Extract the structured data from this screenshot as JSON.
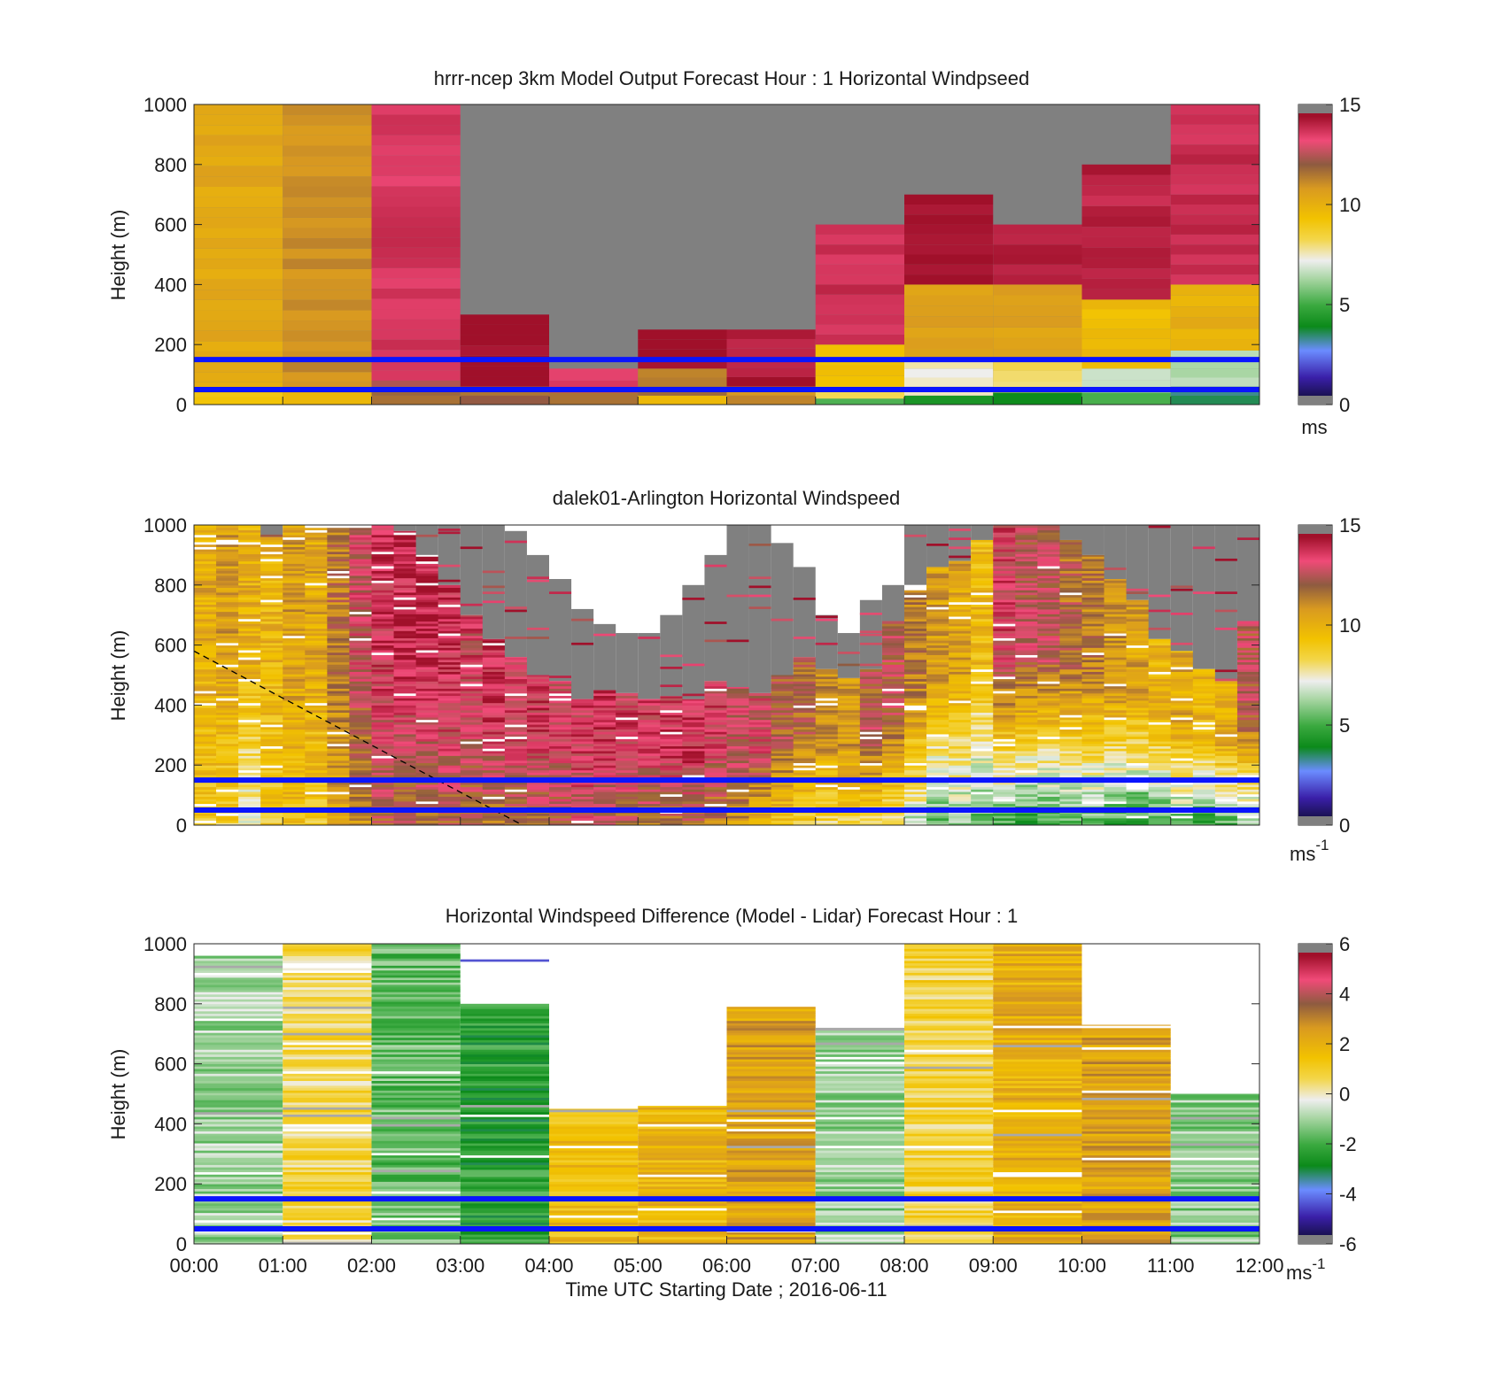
{
  "figure": {
    "xlabel": "Time UTC  Starting Date ; 2016-06-11",
    "x_ticks": [
      "00:00",
      "01:00",
      "02:00",
      "03:00",
      "04:00",
      "05:00",
      "06:00",
      "07:00",
      "08:00",
      "09:00",
      "10:00",
      "11:00",
      "12:00"
    ],
    "boundary_lines_m": [
      50,
      150
    ],
    "boundary_line_color": "#0a14ff"
  },
  "chart_data": [
    {
      "type": "heatmap",
      "title": "hrrr-ncep 3km Model Output   Forecast Hour : 1 Horizontal Windpseed",
      "xlabel": "",
      "ylabel": "Height (m)",
      "ylim": [
        0,
        1000
      ],
      "y_ticks": [
        "0",
        "200",
        "400",
        "600",
        "800",
        "1000"
      ],
      "colorbar": {
        "range": [
          0,
          15
        ],
        "ticks": [
          "0",
          "5",
          "10",
          "15"
        ],
        "unit": "ms"
      },
      "cells": [
        {
          "hour": 0,
          "z": [
            [
              0,
              25,
              9.2
            ],
            [
              25,
              40,
              9.0
            ],
            [
              40,
              1000,
              10.3
            ]
          ]
        },
        {
          "hour": 1,
          "z": [
            [
              0,
              40,
              9.6
            ],
            [
              40,
              1000,
              11.0
            ]
          ]
        },
        {
          "hour": 2,
          "z": [
            [
              0,
              60,
              11.5
            ],
            [
              60,
              80,
              12.5
            ],
            [
              80,
              1000,
              13.6
            ]
          ]
        },
        {
          "hour": 3,
          "z": [
            [
              0,
              60,
              11.8
            ],
            [
              60,
              300,
              14.5
            ]
          ]
        },
        {
          "hour": 4,
          "z": [
            [
              0,
              40,
              11.5
            ],
            [
              40,
              120,
              13.6
            ]
          ]
        },
        {
          "hour": 5,
          "z": [
            [
              0,
              30,
              9.5
            ],
            [
              30,
              120,
              11.5
            ],
            [
              120,
              250,
              14.5
            ]
          ]
        },
        {
          "hour": 6,
          "z": [
            [
              0,
              60,
              11.0
            ],
            [
              60,
              250,
              14.2
            ]
          ]
        },
        {
          "hour": 7,
          "z": [
            [
              0,
              20,
              5.0
            ],
            [
              20,
              60,
              8.0
            ],
            [
              60,
              200,
              9.5
            ],
            [
              200,
              600,
              13.8
            ]
          ]
        },
        {
          "hour": 8,
          "z": [
            [
              0,
              30,
              4.5
            ],
            [
              30,
              150,
              7.5
            ],
            [
              150,
              400,
              10.5
            ],
            [
              400,
              700,
              14.5
            ]
          ]
        },
        {
          "hour": 9,
          "z": [
            [
              0,
              40,
              4.0
            ],
            [
              40,
              150,
              8.0
            ],
            [
              150,
              400,
              10.5
            ],
            [
              400,
              600,
              14.0
            ]
          ]
        },
        {
          "hour": 10,
          "z": [
            [
              0,
              40,
              5.0
            ],
            [
              40,
              120,
              6.5
            ],
            [
              120,
              350,
              9.5
            ],
            [
              350,
              800,
              14.0
            ]
          ]
        },
        {
          "hour": 11,
          "z": [
            [
              0,
              60,
              3.5
            ],
            [
              60,
              180,
              6.5
            ],
            [
              180,
              400,
              10.0
            ],
            [
              400,
              1000,
              13.8
            ]
          ]
        }
      ],
      "undefined_color": "#808080"
    },
    {
      "type": "heatmap",
      "title": "dalek01-Arlington  Horizontal Windspeed",
      "xlabel": "",
      "ylabel": "Height (m)",
      "ylim": [
        0,
        1000
      ],
      "y_ticks": [
        "0",
        "200",
        "400",
        "600",
        "800",
        "1000"
      ],
      "colorbar": {
        "range": [
          0,
          15
        ],
        "ticks": [
          "0",
          "5",
          "10",
          "15"
        ],
        "unit": "ms-1"
      },
      "profile_columns": 48,
      "column_hours": [
        0.0,
        0.25,
        0.5,
        0.75,
        1.0,
        1.25,
        1.5,
        1.75,
        2.0,
        2.25,
        2.5,
        2.75,
        3.0,
        3.25,
        3.5,
        3.75,
        4.0,
        4.25,
        4.5,
        4.75,
        5.0,
        5.25,
        5.5,
        5.75,
        6.0,
        6.25,
        6.5,
        6.75,
        7.0,
        7.25,
        7.5,
        7.75,
        8.0,
        8.25,
        8.5,
        8.75,
        9.0,
        9.25,
        9.5,
        9.75,
        10.0,
        10.25,
        10.5,
        10.75,
        11.0,
        11.25,
        11.5,
        11.75
      ],
      "valid_top_m": [
        1000,
        1000,
        1000,
        960,
        1000,
        1000,
        1000,
        1000,
        1000,
        980,
        900,
        800,
        700,
        620,
        560,
        500,
        480,
        420,
        450,
        440,
        420,
        430,
        420,
        480,
        460,
        440,
        500,
        560,
        520,
        490,
        520,
        680,
        800,
        860,
        880,
        950,
        1000,
        1000,
        1000,
        950,
        900,
        820,
        750,
        620,
        580,
        520,
        480,
        680
      ],
      "lidar_top_m": [
        1000,
        1000,
        1000,
        1000,
        1000,
        1000,
        1000,
        1000,
        1000,
        1000,
        1000,
        1000,
        1000,
        1000,
        980,
        900,
        820,
        720,
        670,
        640,
        640,
        700,
        800,
        900,
        1000,
        1000,
        940,
        860,
        700,
        640,
        750,
        800,
        1000,
        1000,
        1000,
        1000,
        1000,
        1000,
        1000,
        1000,
        1000,
        1000,
        1000,
        1000,
        1000,
        1000,
        1000,
        1000
      ],
      "mean_speed_ms": [
        10.2,
        10.6,
        10.0,
        9.8,
        10.6,
        10.3,
        11.5,
        12.8,
        13.6,
        13.8,
        13.9,
        13.7,
        13.2,
        13.6,
        13.5,
        13.4,
        13.2,
        13.4,
        13.6,
        13.3,
        13.4,
        13.5,
        13.6,
        13.2,
        12.8,
        12.9,
        12.1,
        11.8,
        11.0,
        10.8,
        12.2,
        12.4,
        11.3,
        10.6,
        10.4,
        9.6,
        13.2,
        12.6,
        12.4,
        11.8,
        11.4,
        10.9,
        10.5,
        9.9,
        10.3,
        9.8,
        10.2,
        12.4
      ],
      "near_surface_speed_ms": [
        9.0,
        8.6,
        7.2,
        8.8,
        9.2,
        9.0,
        10.5,
        10.8,
        12.0,
        11.8,
        11.6,
        11.9,
        11.8,
        11.4,
        11.6,
        12.0,
        12.2,
        12.6,
        12.4,
        12.0,
        11.6,
        11.8,
        12.0,
        11.4,
        10.6,
        9.6,
        9.2,
        8.6,
        8.2,
        8.6,
        8.2,
        7.6,
        6.5,
        5.2,
        5.8,
        5.4,
        5.0,
        4.6,
        4.8,
        5.2,
        5.4,
        4.8,
        4.5,
        5.0,
        5.6,
        4.6,
        5.0,
        5.8
      ],
      "dashed_line": {
        "from": {
          "hour": 0.0,
          "m": 580
        },
        "to": {
          "hour": 3.7,
          "m": 0
        }
      },
      "undefined_color": "#808080"
    },
    {
      "type": "heatmap",
      "title": "Horizontal Windspeed Difference (Model - Lidar) Forecast Hour : 1",
      "xlabel": "Time UTC  Starting Date ; 2016-06-11",
      "ylabel": "Height (m)",
      "ylim": [
        0,
        1000
      ],
      "y_ticks": [
        "0",
        "200",
        "400",
        "600",
        "800",
        "1000"
      ],
      "colorbar": {
        "range": [
          -6,
          6
        ],
        "ticks": [
          "-6",
          "-4",
          "-2",
          "0",
          "2",
          "4",
          "6"
        ],
        "unit": "ms-1"
      },
      "cells": [
        {
          "hour": 0,
          "top": 960,
          "base_diff": -1.0
        },
        {
          "hour": 1,
          "top": 1000,
          "base_diff": 0.6
        },
        {
          "hour": 2,
          "top": 1000,
          "base_diff": -1.6
        },
        {
          "hour": 3,
          "top": 800,
          "base_diff": -2.4
        },
        {
          "hour": 4,
          "top": 450,
          "base_diff": 1.6
        },
        {
          "hour": 5,
          "top": 460,
          "base_diff": 1.8
        },
        {
          "hour": 6,
          "top": 790,
          "base_diff": 2.4
        },
        {
          "hour": 7,
          "top": 720,
          "base_diff": -1.0
        },
        {
          "hour": 8,
          "top": 1000,
          "base_diff": 0.8
        },
        {
          "hour": 9,
          "top": 1000,
          "base_diff": 2.0
        },
        {
          "hour": 10,
          "top": 730,
          "base_diff": 2.4
        },
        {
          "hour": 11,
          "top": 500,
          "base_diff": -1.2
        }
      ],
      "isolated_strips": [
        {
          "hour": 3,
          "m": 940,
          "diff": -4.4
        }
      ]
    }
  ]
}
